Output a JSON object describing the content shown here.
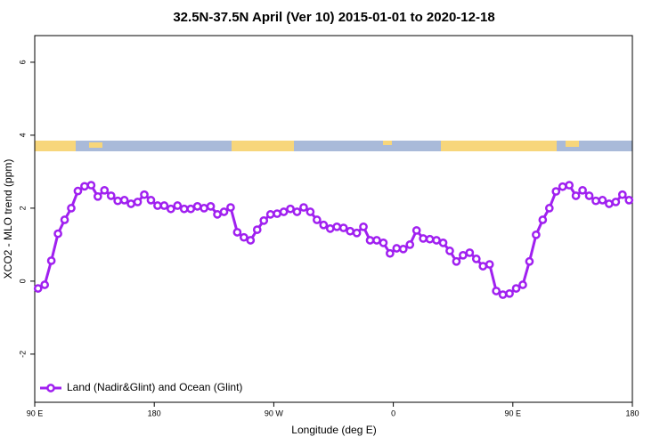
{
  "chart_data": {
    "type": "line",
    "title": "32.5N-37.5N April (Ver 10)   2015-01-01 to 2020-12-18",
    "xlabel": "Longitude (deg E)",
    "ylabel": "XCO2 - MLO trend (ppm)",
    "xlim": [
      90,
      540
    ],
    "ylim": [
      -3.32,
      6.73
    ],
    "xticks": [
      {
        "value": 90,
        "label": "90 E"
      },
      180,
      {
        "value": 270,
        "label": "90 W"
      },
      {
        "value": 360,
        "label": "0"
      },
      {
        "value": 450,
        "label": "90 E"
      },
      {
        "value": 540,
        "label": "180"
      }
    ],
    "yticks": [
      -2,
      0,
      2,
      4,
      6
    ],
    "legend": "bottom-left",
    "x": [
      92.5,
      97.5,
      102.5,
      107.5,
      112.5,
      117.5,
      122.5,
      127.5,
      132.5,
      137.5,
      142.5,
      147.5,
      152.5,
      157.5,
      162.5,
      167.5,
      172.5,
      177.5,
      182.5,
      187.5,
      192.5,
      197.5,
      202.5,
      207.5,
      212.5,
      217.5,
      222.5,
      227.5,
      232.5,
      237.5,
      242.5,
      247.5,
      252.5,
      257.5,
      262.5,
      267.5,
      272.5,
      277.5,
      282.5,
      287.5,
      292.5,
      297.5,
      302.5,
      307.5,
      312.5,
      317.5,
      322.5,
      327.5,
      332.5,
      337.5,
      342.5,
      347.5,
      352.5,
      357.5,
      362.5,
      367.5,
      372.5,
      377.5,
      382.5,
      387.5,
      392.5,
      397.5,
      402.5,
      407.5,
      412.5,
      417.5,
      422.5,
      427.5,
      432.5,
      437.5,
      442.5,
      447.5,
      452.5,
      457.5,
      462.5,
      467.5,
      472.5,
      477.5,
      482.5,
      487.5,
      492.5,
      497.5,
      502.5,
      507.5,
      512.5,
      517.5,
      522.5,
      527.5,
      532.5,
      537.5
    ],
    "series": [
      {
        "name": "Land (Nadir&Glint) and Ocean (Glint)",
        "color": "#a020f0",
        "values": [
          -0.2,
          -0.1,
          0.56,
          1.3,
          1.68,
          2.0,
          2.47,
          2.6,
          2.63,
          2.32,
          2.49,
          2.34,
          2.2,
          2.22,
          2.12,
          2.17,
          2.37,
          2.22,
          2.07,
          2.07,
          1.98,
          2.07,
          1.98,
          1.98,
          2.05,
          2.0,
          2.05,
          1.83,
          1.9,
          2.02,
          1.34,
          1.2,
          1.12,
          1.41,
          1.66,
          1.83,
          1.85,
          1.9,
          1.98,
          1.9,
          2.02,
          1.9,
          1.68,
          1.54,
          1.44,
          1.49,
          1.46,
          1.37,
          1.32,
          1.49,
          1.12,
          1.12,
          1.05,
          0.76,
          0.9,
          0.88,
          1.0,
          1.39,
          1.17,
          1.15,
          1.12,
          1.05,
          0.83,
          0.54,
          0.71,
          0.78,
          0.61,
          0.41,
          0.46,
          -0.27,
          -0.37,
          -0.34,
          -0.2,
          -0.1,
          0.54,
          1.27,
          1.68,
          2.0,
          2.46,
          2.59,
          2.63,
          2.34,
          2.49,
          2.34,
          2.2,
          2.22,
          2.12,
          2.17,
          2.37,
          2.22
        ]
      }
    ]
  }
}
